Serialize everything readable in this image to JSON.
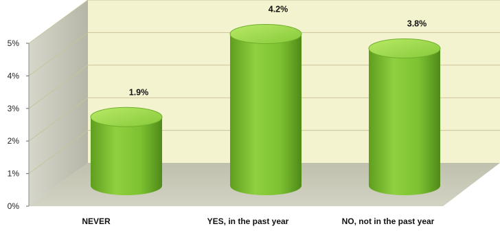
{
  "chart_data": {
    "type": "bar",
    "style": "3d-cylinder",
    "categories": [
      "NEVER",
      "YES, in the past year",
      "NO, not in the past year"
    ],
    "values": [
      1.9,
      4.2,
      3.8
    ],
    "data_labels": [
      "1.9%",
      "4.2%",
      "3.8%"
    ],
    "y_ticks": [
      "0%",
      "1%",
      "2%",
      "3%",
      "4%",
      "5%"
    ],
    "ylim": [
      0,
      5
    ],
    "grid": true,
    "legend": "none"
  },
  "colors": {
    "bar": "#7cc232",
    "bar_top": "#a6dd52",
    "back_wall": "#f4f3cf",
    "side_wall": "#bcbdb0",
    "floor": "#c7c8b5",
    "grid": "#c9c39a"
  }
}
